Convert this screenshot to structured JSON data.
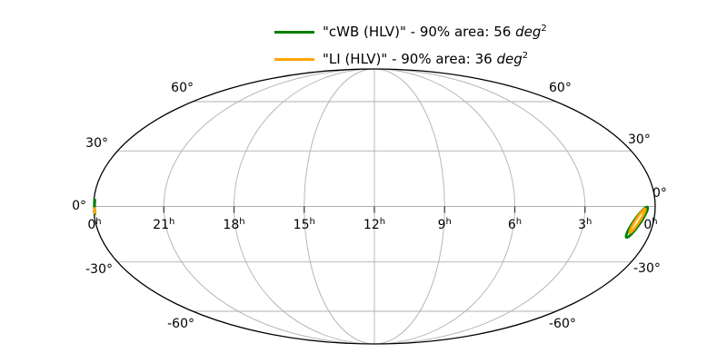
{
  "legend": {
    "items": [
      {
        "name": "cWB (HLV)",
        "color": "#008000",
        "text": "\"cWB (HLV)\" - 90% area: 56 ",
        "unit": "deg",
        "exp": "2"
      },
      {
        "name": "LI (HLV)",
        "color": "#FFA500",
        "text": "\"LI (HLV)\" - 90% area: 36 ",
        "unit": "deg",
        "exp": "2"
      }
    ]
  },
  "chart_data": {
    "type": "skymap-mollweide-contours",
    "projection": "mollweide",
    "center_ra_h": 12,
    "grid": true,
    "dec_gridlines_deg": [
      60,
      30,
      0,
      -30,
      -60
    ],
    "ra_gridlines_h": [
      21,
      18,
      15,
      12,
      9,
      6,
      3
    ],
    "dec_tick_labels": [
      {
        "text": "60°",
        "dec": 60
      },
      {
        "text": "30°",
        "dec": 30
      },
      {
        "text": "0°",
        "dec": 0
      },
      {
        "text": "-30°",
        "dec": -30
      },
      {
        "text": "-60°",
        "dec": -60
      }
    ],
    "ra_tick_labels": [
      {
        "text": "0",
        "sup": "h",
        "ra_h": 24
      },
      {
        "text": "21",
        "sup": "h",
        "ra_h": 21
      },
      {
        "text": "18",
        "sup": "h",
        "ra_h": 18
      },
      {
        "text": "15",
        "sup": "h",
        "ra_h": 15
      },
      {
        "text": "12",
        "sup": "h",
        "ra_h": 12
      },
      {
        "text": "9",
        "sup": "h",
        "ra_h": 9
      },
      {
        "text": "6",
        "sup": "h",
        "ra_h": 6
      },
      {
        "text": "3",
        "sup": "h",
        "ra_h": 3
      },
      {
        "text": "0",
        "sup": "h",
        "ra_h": 0
      }
    ],
    "series": [
      {
        "name": "cWB (HLV)",
        "credible_level": "90%",
        "area_deg2": 56,
        "color": "#008000",
        "contour": {
          "main_segment": {
            "ra1_h": 0.33,
            "dec1_deg": -0.3,
            "ra2_h": 0.95,
            "dec2_deg": -16.5,
            "width_deg": 3.4
          },
          "wrap_segment": {
            "ra_h": 23.96,
            "dec_from_deg": 3.4,
            "dec_to_deg": -3.9
          }
        }
      },
      {
        "name": "LI (HLV)",
        "credible_level": "90%",
        "area_deg2": 36,
        "color": "#FFA500",
        "contour": {
          "main_segment": {
            "ra1_h": 0.42,
            "dec1_deg": -1.2,
            "ra2_h": 0.88,
            "dec2_deg": -14.0,
            "width_deg": 2.1
          },
          "wrap_segment": {
            "ra_h": 23.96,
            "dec_from_deg": -1.0,
            "dec_to_deg": -3.4
          }
        }
      }
    ]
  }
}
